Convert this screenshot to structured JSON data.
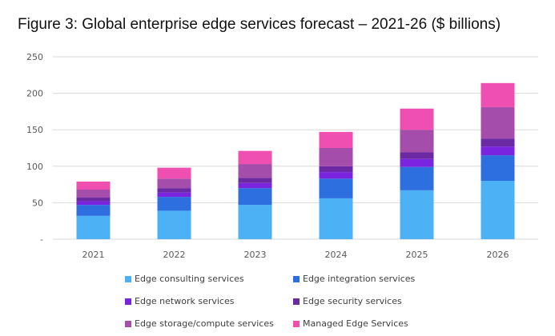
{
  "chart_data": {
    "type": "bar",
    "stacked": true,
    "title": "Figure 3: Global enterprise edge services forecast – 2021-26 ($ billions)",
    "categories": [
      "2021",
      "2022",
      "2023",
      "2024",
      "2025",
      "2026"
    ],
    "ylim": [
      0,
      250
    ],
    "yticks": [
      {
        "value": 0,
        "label": "-"
      },
      {
        "value": 50,
        "label": "50"
      },
      {
        "value": 100,
        "label": "100"
      },
      {
        "value": 150,
        "label": "150"
      },
      {
        "value": 200,
        "label": "200"
      },
      {
        "value": 250,
        "label": "250"
      }
    ],
    "grid": true,
    "legend_position": "bottom",
    "series": [
      {
        "name": "Edge consulting services",
        "color": "#4cb1f5",
        "values": [
          32,
          39,
          47,
          56,
          67,
          80
        ]
      },
      {
        "name": "Edge integration services",
        "color": "#2e6fe0",
        "values": [
          15,
          19,
          23,
          27,
          32,
          35
        ]
      },
      {
        "name": "Edge network services",
        "color": "#7a24e0",
        "values": [
          5,
          6,
          7,
          9,
          11,
          12
        ]
      },
      {
        "name": "Edge security services",
        "color": "#6b2aa3",
        "values": [
          5,
          6,
          7,
          8,
          9,
          11
        ]
      },
      {
        "name": "Edge storage/compute services",
        "color": "#a44dab",
        "values": [
          11,
          13,
          19,
          25,
          31,
          43
        ]
      },
      {
        "name": "Managed Edge Services",
        "color": "#ee4fb0",
        "values": [
          11,
          15,
          18,
          22,
          29,
          33
        ]
      }
    ]
  }
}
